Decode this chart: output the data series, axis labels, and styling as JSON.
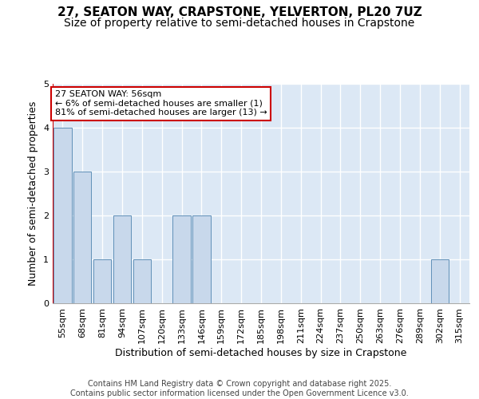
{
  "title_line1": "27, SEATON WAY, CRAPSTONE, YELVERTON, PL20 7UZ",
  "title_line2": "Size of property relative to semi-detached houses in Crapstone",
  "xlabel": "Distribution of semi-detached houses by size in Crapstone",
  "ylabel": "Number of semi-detached properties",
  "categories": [
    "55sqm",
    "68sqm",
    "81sqm",
    "94sqm",
    "107sqm",
    "120sqm",
    "133sqm",
    "146sqm",
    "159sqm",
    "172sqm",
    "185sqm",
    "198sqm",
    "211sqm",
    "224sqm",
    "237sqm",
    "250sqm",
    "263sqm",
    "276sqm",
    "289sqm",
    "302sqm",
    "315sqm"
  ],
  "values": [
    4,
    3,
    1,
    2,
    1,
    0,
    2,
    2,
    0,
    0,
    0,
    0,
    0,
    0,
    0,
    0,
    0,
    0,
    0,
    1,
    0
  ],
  "bar_color": "#c8d8eb",
  "bar_edge_color": "#6090b8",
  "highlight_line_color": "#cc0000",
  "annotation_line1": "27 SEATON WAY: 56sqm",
  "annotation_line2": "← 6% of semi-detached houses are smaller (1)",
  "annotation_line3": "81% of semi-detached houses are larger (13) →",
  "annotation_box_facecolor": "#ffffff",
  "annotation_box_edgecolor": "#cc0000",
  "ylim": [
    0,
    5
  ],
  "yticks": [
    0,
    1,
    2,
    3,
    4,
    5
  ],
  "background_color": "#dce8f5",
  "grid_color": "#ffffff",
  "footer_line1": "Contains HM Land Registry data © Crown copyright and database right 2025.",
  "footer_line2": "Contains public sector information licensed under the Open Government Licence v3.0.",
  "title1_fontsize": 11,
  "title2_fontsize": 10,
  "ylabel_fontsize": 9,
  "xlabel_fontsize": 9,
  "tick_fontsize": 8,
  "annot_fontsize": 8,
  "footer_fontsize": 7
}
